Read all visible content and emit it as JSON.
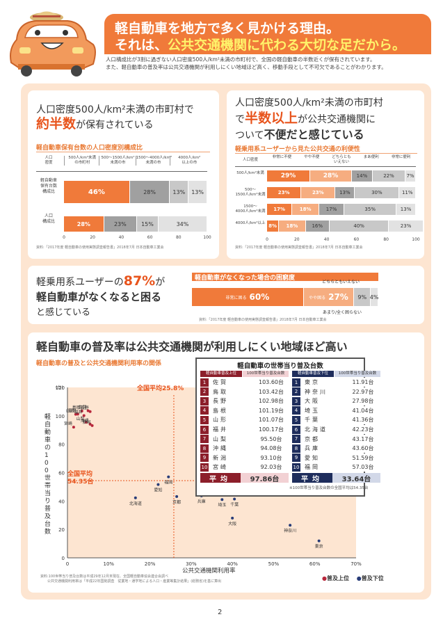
{
  "header": {
    "title_line1": "軽自動車を地方で多く見かける理由。",
    "title_line2_pre": "それは、",
    "title_line2_hl": "公共交通機関に代わる大切な足だから。",
    "intro_line1": "人口構成比が3割に過ぎない人口密度500人/km²未満の市町村で、全国の軽自動車の半数近くが保有されています。",
    "intro_line2": "また、軽自動車の普及率は公共交通機関が利用しにくい地域ほど高く、移動手段として不可欠であることがわかります。"
  },
  "panel1": {
    "heading_line1": "人口密度500人/km²未満の市町村で",
    "heading_big": "約半数",
    "heading_tail": "が保有されている",
    "subtitle": "軽自動車保有台数の人口密度別構成比",
    "col_header_label": "人口\n密度",
    "columns": [
      "500人/km²未満\nの市町村",
      "500〜1500人/km²\n未満の市",
      "1500〜4000人/km²\n未満の市",
      "4000人/km²\n以上の市"
    ],
    "rows": [
      {
        "label": "軽自動車\n保有台数\n構成比",
        "values": [
          46,
          28,
          13,
          13
        ],
        "labels": [
          "46%",
          "28%",
          "13%",
          "13%"
        ]
      },
      {
        "label": "人口\n構成比",
        "values": [
          28,
          23,
          15,
          34
        ],
        "labels": [
          "28%",
          "23%",
          "15%",
          "34%"
        ]
      }
    ],
    "ticks": [
      "0",
      "20",
      "40",
      "60",
      "80",
      "100"
    ],
    "source": "資料:「2017年度 軽自動車の使用実態調査報告書」2018年7月 日本自動車工業会"
  },
  "panel2": {
    "heading_line1": "人口密度500人/km²未満の市町村",
    "heading_pre": "で",
    "heading_big": "半数以上",
    "heading_mid": "が公共交通機関に",
    "heading_line3_pre": "ついて",
    "heading_line3_bold": "不便だと感じている",
    "subtitle": "軽乗用系ユーザーから見た公共交通の利便性",
    "col_header_label": "人口密度",
    "columns": [
      "非常に不便",
      "やや不便",
      "どちらとも\nいえない",
      "まあ便利",
      "非常に便利"
    ],
    "rows": [
      {
        "label": "500人/km²未満",
        "values": [
          29,
          28,
          14,
          22,
          7
        ],
        "labels": [
          "29%",
          "28%",
          "14%",
          "22%",
          "7%"
        ]
      },
      {
        "label": "500〜\n1500人/km²未満",
        "values": [
          23,
          23,
          13,
          30,
          11
        ],
        "labels": [
          "23%",
          "23%",
          "13%",
          "30%",
          "11%"
        ]
      },
      {
        "label": "1500〜\n4000人/km²未満",
        "values": [
          17,
          18,
          17,
          35,
          13
        ],
        "labels": [
          "17%",
          "18%",
          "17%",
          "35%",
          "13%"
        ]
      },
      {
        "label": "4000人/km²以上",
        "values": [
          8,
          18,
          16,
          40,
          23
        ],
        "labels": [
          "8%",
          "18%",
          "16%",
          "40%",
          "23%"
        ]
      }
    ],
    "ticks": [
      "0",
      "20",
      "40",
      "60",
      "80",
      "100"
    ],
    "source": "資料:「2017年度 軽自動車の使用実態調査報告書」2018年7月 日本自動車工業会"
  },
  "panel3": {
    "heading_pre": "軽乗用系ユーザーの",
    "heading_big": "87%",
    "heading_suf": "が",
    "heading_line2": "軽自動車がなくなると困る",
    "heading_line3": "と感じている",
    "subtitle": "軽自動車がなくなった場合の困窮度",
    "segments": [
      {
        "label": "非常に困る",
        "value": 60,
        "text": "60%"
      },
      {
        "label": "やや困る",
        "value": 27,
        "text": "27%"
      },
      {
        "label": "どちらともいえない",
        "value": 9,
        "text": "9%"
      },
      {
        "label": "あまり/全く困らない",
        "value": 4,
        "text": "4%"
      }
    ],
    "source": "資料:「2017年度 軽自動車の使用実態調査報告書」2018年7月 日本自動車工業会"
  },
  "panel4": {
    "heading": "軽自動車の普及率は公共交通機関が利用しにくい地域ほど高い",
    "subtitle": "軽自動車の普及と公共交通機関利用率の関係",
    "ylabel": "軽自動車の100世帯当り普及台数",
    "yunit": "(台)",
    "xlabel": "公共交通機関利用率",
    "national_avg_x": "全国平均25.8%",
    "national_avg_y_label": "全国平均",
    "national_avg_y_value": "54.35台",
    "legend_top": "普及上位",
    "legend_bottom": "普及下位",
    "source_line1": "資料:100世帯当り普及台数は平成29年12月末現在、全国軽自動車協会連合会調べ",
    "source_line2": "公共交通機関利用率は「平成22年国勢調査　従業地・通学地による人口・産業等集計結果」(総務省)を基に算出",
    "ranking": {
      "title": "軽自動車の世帯当り普及台数",
      "top_header": [
        "軽自動車普及上位",
        "100世帯当り普及台数"
      ],
      "bottom_header": [
        "軽自動車普及下位",
        "100世帯当り普及台数"
      ],
      "top": [
        {
          "rank": "1",
          "pref": "佐賀",
          "val": "103.60台"
        },
        {
          "rank": "2",
          "pref": "鳥取",
          "val": "103.42台"
        },
        {
          "rank": "3",
          "pref": "長野",
          "val": "102.98台"
        },
        {
          "rank": "4",
          "pref": "島根",
          "val": "101.19台"
        },
        {
          "rank": "5",
          "pref": "山形",
          "val": "101.07台"
        },
        {
          "rank": "6",
          "pref": "福井",
          "val": "100.17台"
        },
        {
          "rank": "7",
          "pref": "山梨",
          "val": "95.50台"
        },
        {
          "rank": "8",
          "pref": "沖縄",
          "val": "94.08台"
        },
        {
          "rank": "9",
          "pref": "新潟",
          "val": "93.10台"
        },
        {
          "rank": "10",
          "pref": "宮崎",
          "val": "92.03台"
        }
      ],
      "bottom": [
        {
          "rank": "1",
          "pref": "東京",
          "val": "11.91台"
        },
        {
          "rank": "2",
          "pref": "神奈川",
          "val": "22.97台"
        },
        {
          "rank": "3",
          "pref": "大阪",
          "val": "27.98台"
        },
        {
          "rank": "4",
          "pref": "埼玉",
          "val": "41.04台"
        },
        {
          "rank": "5",
          "pref": "千葉",
          "val": "41.36台"
        },
        {
          "rank": "6",
          "pref": "北海道",
          "val": "42.23台"
        },
        {
          "rank": "7",
          "pref": "京都",
          "val": "43.17台"
        },
        {
          "rank": "8",
          "pref": "兵庫",
          "val": "43.60台"
        },
        {
          "rank": "9",
          "pref": "愛知",
          "val": "51.59台"
        },
        {
          "rank": "10",
          "pref": "福岡",
          "val": "57.03台"
        }
      ],
      "avg_label": "平均",
      "top_avg": "97.86台",
      "bottom_avg": "33.64台",
      "note": "※100世帯当り普及台数の全国平均は54.35台"
    }
  },
  "chart_data": {
    "type": "scatter",
    "title": "軽自動車の普及と公共交通機関利用率の関係",
    "xlabel": "公共交通機関利用率",
    "ylabel": "軽自動車の100世帯当り普及台数",
    "xlim": [
      0,
      70
    ],
    "ylim": [
      0,
      120
    ],
    "xticks": [
      "0",
      "10%",
      "20%",
      "30%",
      "40%",
      "50%",
      "60%",
      "70%"
    ],
    "yticks": [
      "0",
      "20",
      "40",
      "60",
      "80",
      "100",
      "120"
    ],
    "national_avg": {
      "x": 25.8,
      "y": 54.35
    },
    "series": [
      {
        "name": "普及上位",
        "color": "#b8283c",
        "points": [
          {
            "label": "佐賀",
            "x": 5.0,
            "y": 103.6
          },
          {
            "label": "鳥取",
            "x": 3.5,
            "y": 103.42
          },
          {
            "label": "長野",
            "x": 5.5,
            "y": 102.98
          },
          {
            "label": "島根",
            "x": 2.5,
            "y": 101.19
          },
          {
            "label": "山形",
            "x": 2.0,
            "y": 101.07
          },
          {
            "label": "福井",
            "x": 4.0,
            "y": 100.17
          },
          {
            "label": "山梨",
            "x": 4.5,
            "y": 95.5
          },
          {
            "label": "沖縄",
            "x": 5.5,
            "y": 94.08
          },
          {
            "label": "新潟",
            "x": 6.0,
            "y": 93.1
          },
          {
            "label": "宮崎",
            "x": 1.5,
            "y": 92.03
          }
        ]
      },
      {
        "name": "普及下位",
        "color": "#283c78",
        "points": [
          {
            "label": "東京",
            "x": 61.0,
            "y": 11.91
          },
          {
            "label": "神奈川",
            "x": 54.0,
            "y": 22.97
          },
          {
            "label": "大阪",
            "x": 40.0,
            "y": 27.98
          },
          {
            "label": "埼玉",
            "x": 37.5,
            "y": 41.04
          },
          {
            "label": "千葉",
            "x": 40.5,
            "y": 41.36
          },
          {
            "label": "北海道",
            "x": 16.5,
            "y": 42.23
          },
          {
            "label": "京都",
            "x": 26.5,
            "y": 43.17
          },
          {
            "label": "兵庫",
            "x": 32.5,
            "y": 43.6
          },
          {
            "label": "愛知",
            "x": 22.0,
            "y": 51.59
          },
          {
            "label": "福岡",
            "x": 24.5,
            "y": 57.03
          }
        ]
      }
    ]
  },
  "footer": {
    "page_number": "2"
  }
}
